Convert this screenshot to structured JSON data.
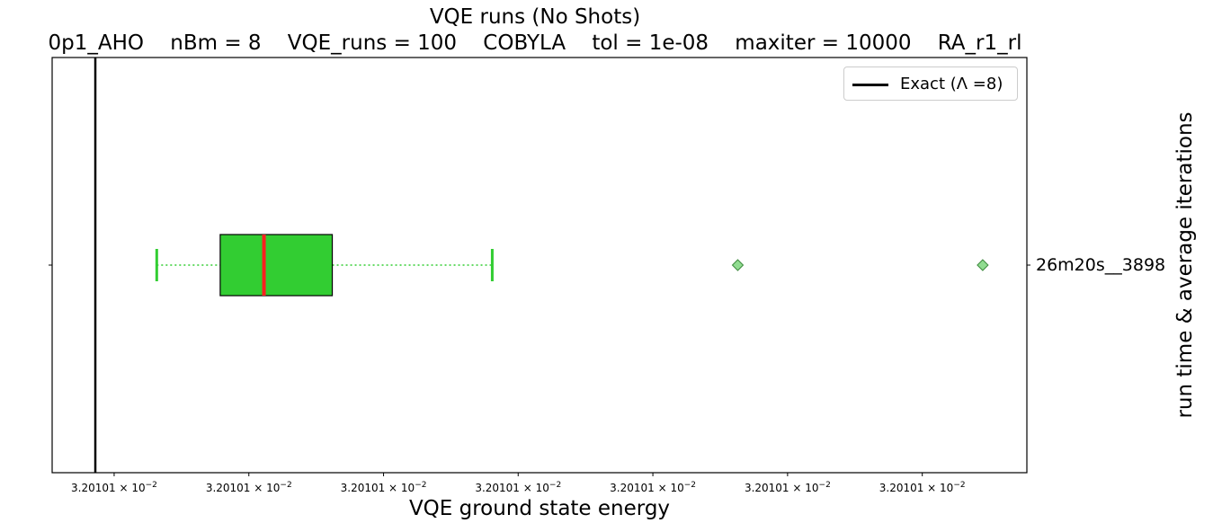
{
  "chart_data": {
    "type": "box",
    "title": "VQE runs (No Shots)",
    "subtitle": "0p1_AHO    nBm = 8    VQE_runs = 100    COBYLA    tol = 1e-08    maxiter = 10000    RA_r1_rl",
    "xlabel": "VQE ground state energy",
    "ylabel": "run time & average iterations",
    "xlim": [
      0.0,
      1.0
    ],
    "x_ticks": [
      0.0636,
      0.2018,
      0.34,
      0.4781,
      0.6163,
      0.7545,
      0.8927
    ],
    "x_tick_label": "3.20101 × 10",
    "x_tick_exponent": "−2",
    "categories": [
      "26m20s__3898"
    ],
    "exact": {
      "label": "Exact (Λ =8)",
      "x": 0.0443,
      "color": "#000000"
    },
    "boxes": [
      {
        "category": "26m20s__3898",
        "whisker_low": 0.1073,
        "q1": 0.1724,
        "median": 0.2173,
        "q3": 0.2874,
        "whisker_high": 0.4515,
        "outliers": [
          0.7034,
          0.9547
        ]
      }
    ],
    "colors": {
      "box_fill": "#32cd32",
      "median": "#ff2020",
      "whisker": "#32cd32",
      "outlier": "#90dc90"
    },
    "legend_position": "upper right",
    "grid": false
  }
}
